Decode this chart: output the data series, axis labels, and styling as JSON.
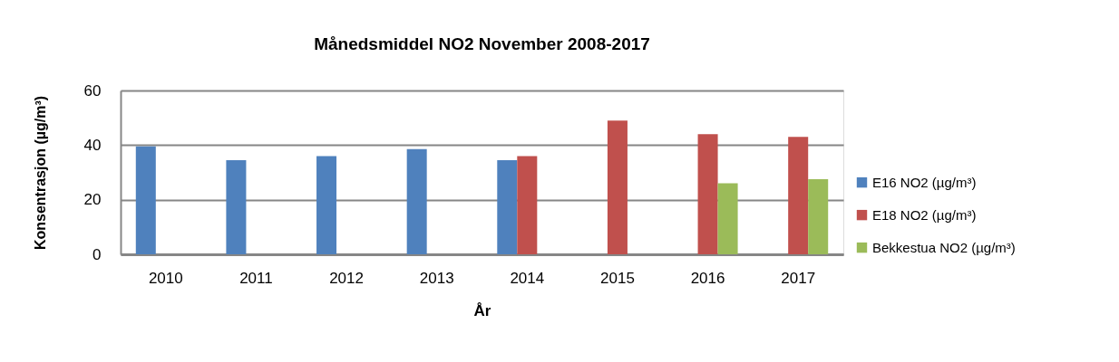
{
  "chart_data": {
    "type": "bar",
    "title": "Månedsmiddel NO2 November 2008-2017",
    "xlabel": "År",
    "ylabel": "Konsentrasjon (µg/m³)",
    "categories": [
      "2010",
      "2011",
      "2012",
      "2013",
      "2014",
      "2015",
      "2016",
      "2017"
    ],
    "series": [
      {
        "name": "E16  NO2 (µg/m³)",
        "color": "#4f81bd",
        "values": [
          39.5,
          34.5,
          36,
          38.5,
          34.5,
          null,
          null,
          null
        ]
      },
      {
        "name": "E18 NO2 (µg/m³)",
        "color": "#c0504d",
        "values": [
          null,
          null,
          null,
          null,
          36,
          49,
          44,
          43
        ]
      },
      {
        "name": "Bekkestua NO2  (µg/m³)",
        "color": "#9bbb59",
        "values": [
          null,
          null,
          null,
          null,
          null,
          null,
          26,
          27.5
        ]
      }
    ],
    "ylim": [
      0,
      60
    ],
    "yticks": [
      0,
      20,
      40,
      60
    ],
    "grid": "y",
    "legend": "right"
  }
}
